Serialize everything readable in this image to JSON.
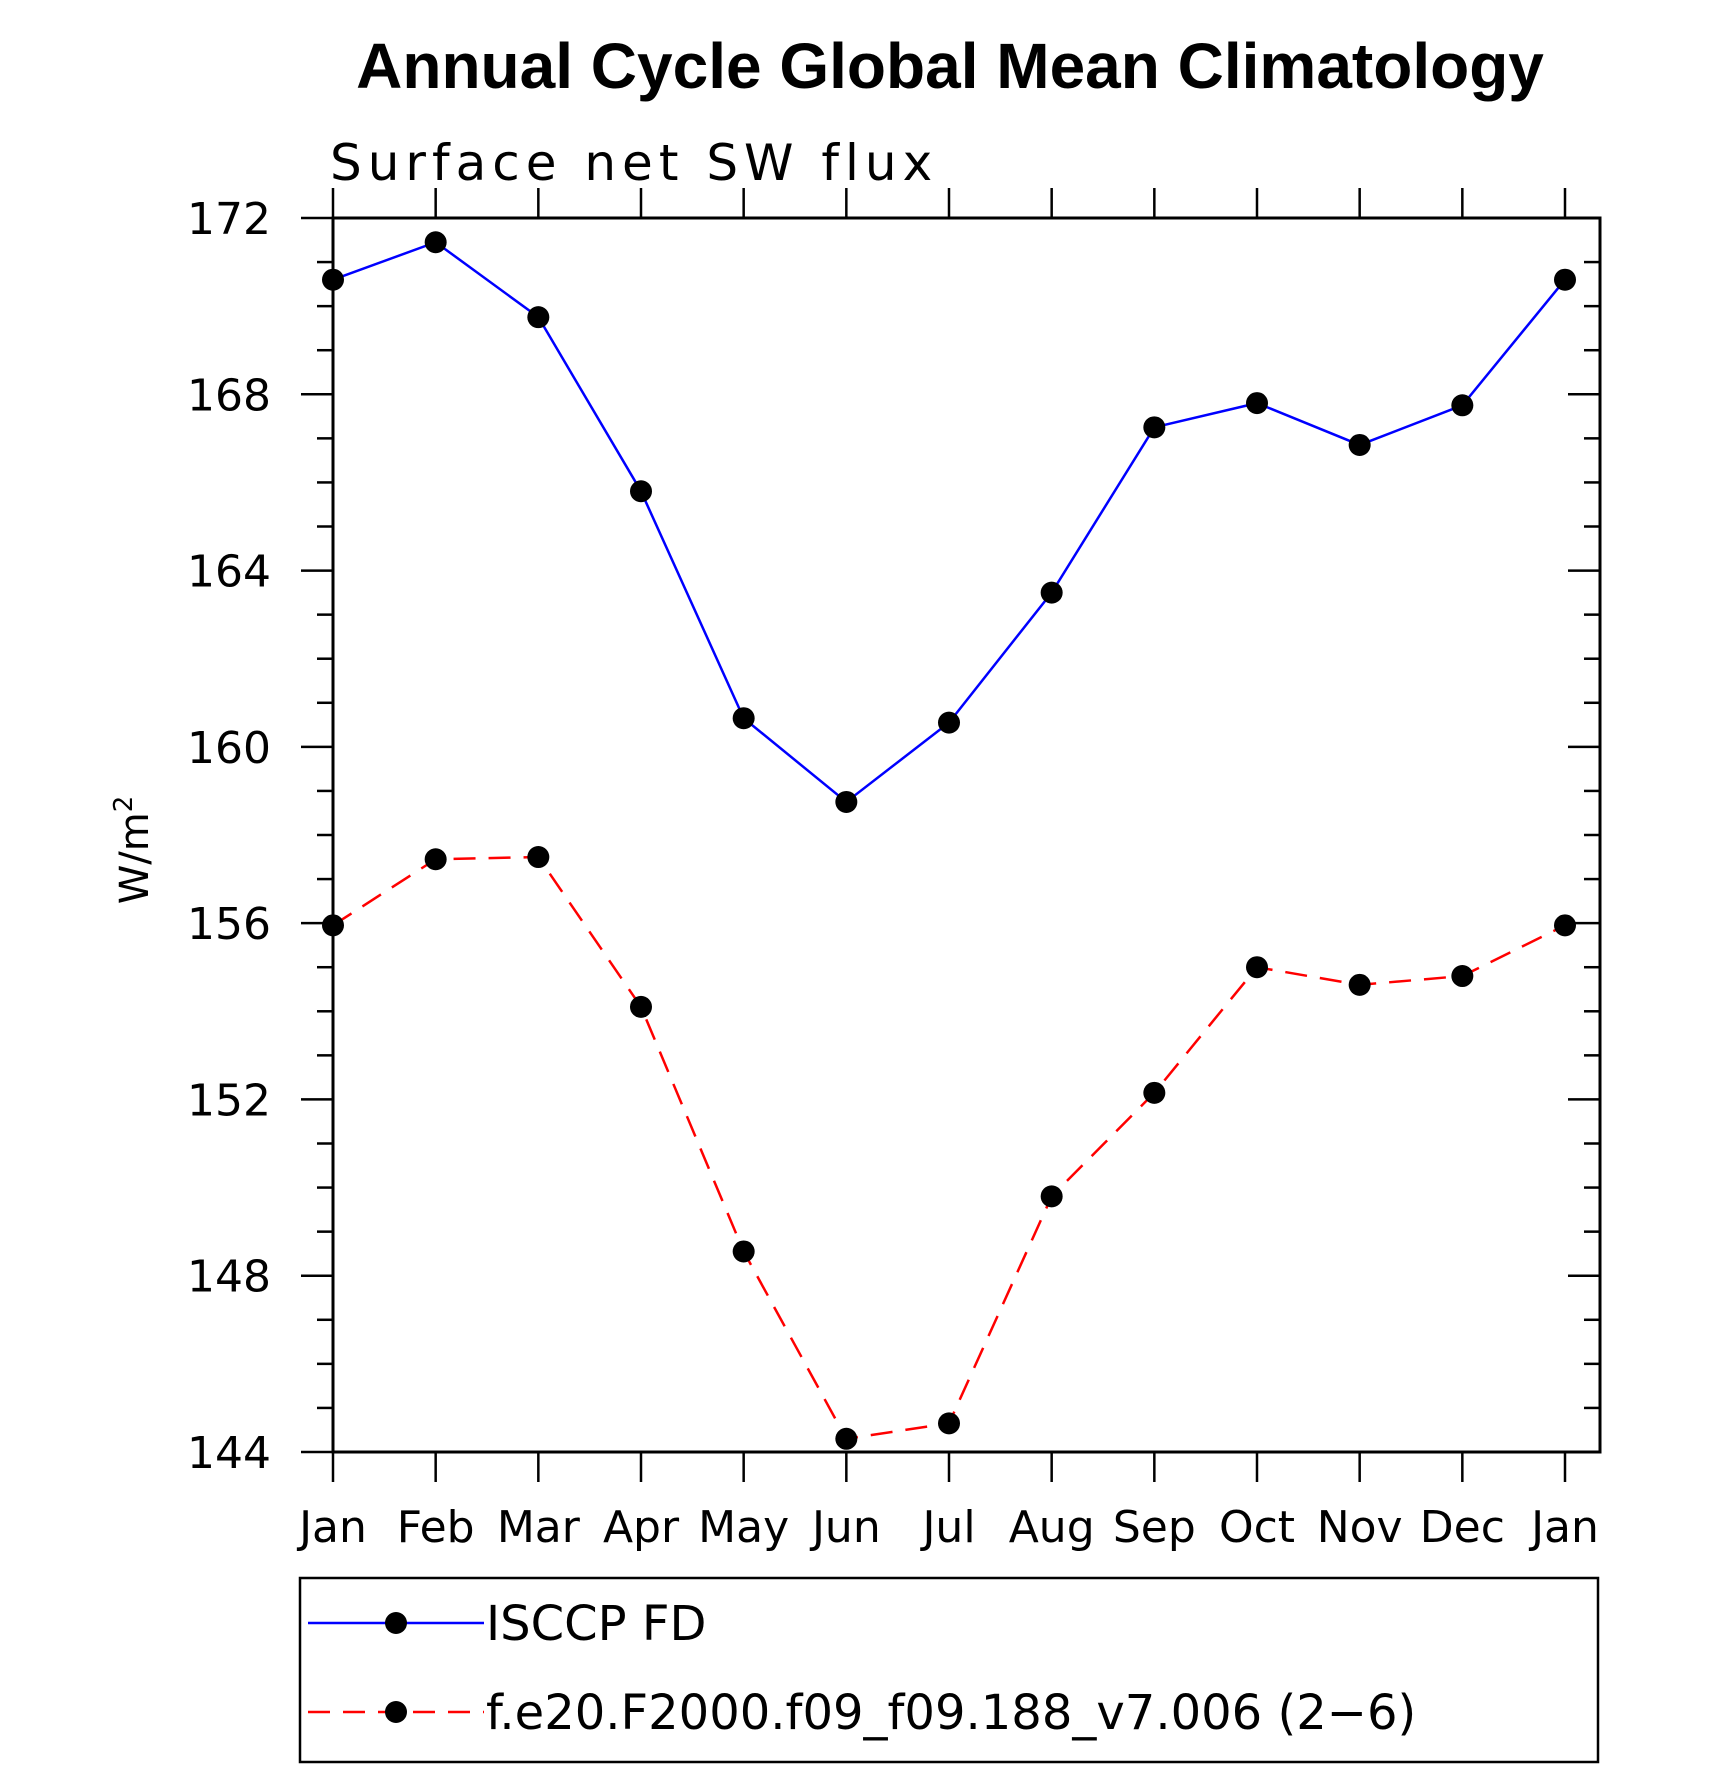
{
  "chart_data": {
    "type": "line",
    "title": "Annual Cycle Global Mean Climatology",
    "subtitle": "Surface net SW flux",
    "ylabel_base": "W/m",
    "ylabel_sup": "2",
    "xlabel": "",
    "categories": [
      "Jan",
      "Feb",
      "Mar",
      "Apr",
      "May",
      "Jun",
      "Jul",
      "Aug",
      "Sep",
      "Oct",
      "Nov",
      "Dec",
      "Jan"
    ],
    "ylim": [
      144,
      172
    ],
    "yticks": [
      144,
      148,
      152,
      156,
      160,
      164,
      168,
      172
    ],
    "y_minor_step": 1,
    "grid": false,
    "legend_placement": "bottom",
    "series": [
      {
        "name": "ISCCP FD",
        "color": "#0000ff",
        "dash": "solid",
        "marker": "filled-circle",
        "values": [
          170.6,
          171.45,
          169.75,
          165.8,
          160.65,
          158.75,
          160.55,
          163.5,
          167.25,
          167.8,
          166.85,
          167.75,
          170.6
        ]
      },
      {
        "name": "f.e20.F2000.f09_f09.188_v7.006 (2−6)",
        "color": "#ff0000",
        "dash": "dashed",
        "marker": "filled-circle",
        "values": [
          155.95,
          157.45,
          157.5,
          154.1,
          148.55,
          144.3,
          144.65,
          149.8,
          152.15,
          155.0,
          154.6,
          154.8,
          155.95
        ]
      }
    ]
  }
}
